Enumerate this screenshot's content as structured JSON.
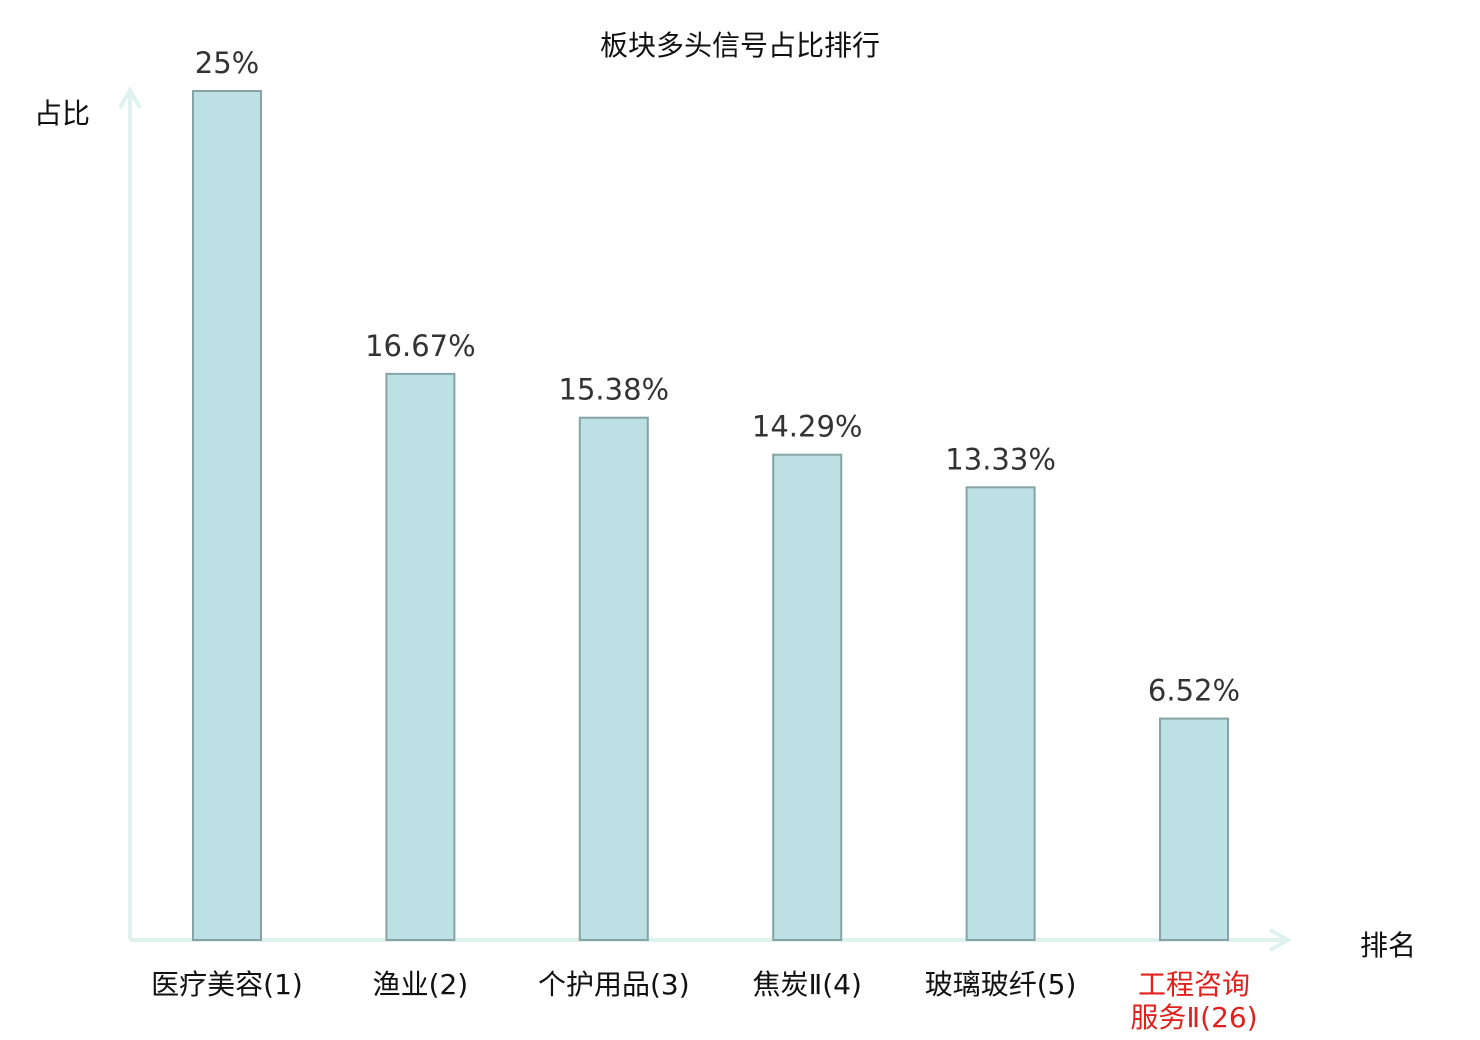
{
  "chart_data": {
    "type": "bar",
    "title": "板块多头信号占比排行",
    "ylabel": "占比",
    "xlabel": "排名",
    "categories": [
      "医疗美容(1)",
      "渔业(2)",
      "个护用品(3)",
      "焦炭Ⅱ(4)",
      "玻璃玻纤(5)",
      "工程咨询\n服务Ⅱ(26)"
    ],
    "values": [
      25,
      16.67,
      15.38,
      14.29,
      13.33,
      6.52
    ],
    "value_labels": [
      "25%",
      "16.67%",
      "15.38%",
      "14.29%",
      "13.33%",
      "6.52%"
    ],
    "highlight_index": 5,
    "ylim": [
      0,
      25
    ],
    "grid": false
  },
  "colors": {
    "bar_fill": "#bce0e3",
    "bar_stroke": "#86a3a6",
    "axis": "#dff2ef",
    "text": "#111111",
    "value_label": "#333333",
    "highlight": "#e0211d"
  }
}
